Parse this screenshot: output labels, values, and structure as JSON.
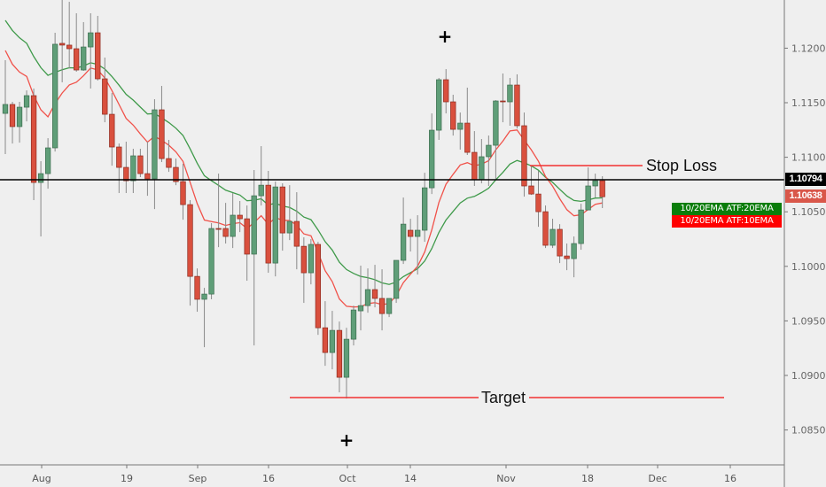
{
  "chart_data": {
    "type": "candlestick",
    "title": "",
    "price_ticks": [
      "1.12000",
      "1.11500",
      "1.11000",
      "1.10500",
      "1.10000",
      "1.09500",
      "1.09000",
      "1.08500"
    ],
    "date_ticks": [
      "Aug",
      "19",
      "Sep",
      "16",
      "Oct",
      "14",
      "Nov",
      "18",
      "Dec",
      "16"
    ],
    "ylim": [
      1.0815,
      1.1245
    ],
    "ohlc_order": [
      "open",
      "high",
      "low",
      "close"
    ],
    "candles": [
      [
        1.11402,
        1.1189,
        1.11029,
        1.11484
      ],
      [
        1.11484,
        1.11508,
        1.11126,
        1.11281
      ],
      [
        1.11281,
        1.11508,
        1.11134,
        1.11459
      ],
      [
        1.11459,
        1.11613,
        1.11329,
        1.11565
      ],
      [
        1.11565,
        1.1163,
        1.10607,
        1.10769
      ],
      [
        1.10769,
        1.10964,
        1.10274,
        1.1085
      ],
      [
        1.1085,
        1.11175,
        1.10712,
        1.11086
      ],
      [
        1.11086,
        1.12141,
        1.11053,
        1.12036
      ],
      [
        1.12044,
        1.12442,
        1.11687,
        1.12028
      ],
      [
        1.12028,
        1.12425,
        1.11816,
        1.11995
      ],
      [
        1.11995,
        1.1232,
        1.11784,
        1.118
      ],
      [
        1.118,
        1.12239,
        1.11792,
        1.12011
      ],
      [
        1.12011,
        1.1232,
        1.1163,
        1.12141
      ],
      [
        1.12141,
        1.12296,
        1.11703,
        1.11719
      ],
      [
        1.11719,
        1.11914,
        1.11321,
        1.11394
      ],
      [
        1.11394,
        1.11589,
        1.10923,
        1.11094
      ],
      [
        1.11094,
        1.11126,
        1.10672,
        1.10907
      ],
      [
        1.10907,
        1.11143,
        1.10672,
        1.10785
      ],
      [
        1.10785,
        1.11078,
        1.10672,
        1.11013
      ],
      [
        1.11013,
        1.11078,
        1.10818,
        1.1085
      ],
      [
        1.1085,
        1.11143,
        1.10647,
        1.10802
      ],
      [
        1.10802,
        1.11532,
        1.10525,
        1.11435
      ],
      [
        1.11435,
        1.11654,
        1.10956,
        1.10988
      ],
      [
        1.10988,
        1.11159,
        1.10866,
        1.10907
      ],
      [
        1.10907,
        1.10988,
        1.10744,
        1.10777
      ],
      [
        1.10777,
        1.1094,
        1.10428,
        1.10566
      ],
      [
        1.10566,
        1.10607,
        1.0964,
        1.09908
      ],
      [
        1.09908,
        1.09981,
        1.09584,
        1.09698
      ],
      [
        1.09698,
        1.09803,
        1.09259,
        1.09746
      ],
      [
        1.09746,
        1.10396,
        1.09698,
        1.10347
      ],
      [
        1.10347,
        1.1085,
        1.10176,
        1.10339
      ],
      [
        1.10347,
        1.10582,
        1.10209,
        1.10274
      ],
      [
        1.10274,
        1.10672,
        1.10168,
        1.10469
      ],
      [
        1.10469,
        1.10599,
        1.10314,
        1.10436
      ],
      [
        1.10436,
        1.10558,
        1.09868,
        1.10112
      ],
      [
        1.10112,
        1.10883,
        1.09275,
        1.10647
      ],
      [
        1.10647,
        1.11102,
        1.10558,
        1.10744
      ],
      [
        1.10744,
        1.10875,
        1.09941,
        1.1003
      ],
      [
        1.1003,
        1.10777,
        1.09908,
        1.10728
      ],
      [
        1.10728,
        1.10761,
        1.10144,
        1.10306
      ],
      [
        1.10306,
        1.10744,
        1.10241,
        1.10412
      ],
      [
        1.10412,
        1.1068,
        1.09973,
        1.10184
      ],
      [
        1.10184,
        1.10266,
        1.09665,
        1.09941
      ],
      [
        1.09941,
        1.1025,
        1.09835,
        1.10201
      ],
      [
        1.10201,
        1.10225,
        1.09372,
        1.09437
      ],
      [
        1.09437,
        1.09681,
        1.09088,
        1.0921
      ],
      [
        1.0921,
        1.09592,
        1.09056,
        1.09413
      ],
      [
        1.09413,
        1.09494,
        1.08845,
        1.08983
      ],
      [
        1.08983,
        1.09437,
        1.08788,
        1.09332
      ],
      [
        1.09332,
        1.0964,
        1.09275,
        1.096
      ],
      [
        1.09592,
        1.10006,
        1.09413,
        1.0964
      ],
      [
        1.0964,
        1.09981,
        1.09575,
        1.09787
      ],
      [
        1.09787,
        1.10014,
        1.09624,
        1.09706
      ],
      [
        1.09706,
        1.09973,
        1.09413,
        1.09567
      ],
      [
        1.09567,
        1.09706,
        1.09535,
        1.09706
      ],
      [
        1.09706,
        1.10055,
        1.09665,
        1.10055
      ],
      [
        1.10055,
        1.10631,
        1.10022,
        1.10387
      ],
      [
        1.10331,
        1.10436,
        1.10136,
        1.10274
      ],
      [
        1.10274,
        1.10469,
        1.09925,
        1.10331
      ],
      [
        1.10331,
        1.10858,
        1.10225,
        1.1072
      ],
      [
        1.1072,
        1.11402,
        1.10663,
        1.11248
      ],
      [
        1.11248,
        1.11727,
        1.11159,
        1.11711
      ],
      [
        1.11711,
        1.11808,
        1.11402,
        1.11508
      ],
      [
        1.11508,
        1.11573,
        1.11199,
        1.11256
      ],
      [
        1.11256,
        1.1141,
        1.1107,
        1.11313
      ],
      [
        1.11313,
        1.11638,
        1.11021,
        1.11045
      ],
      [
        1.11045,
        1.1124,
        1.10737,
        1.10793
      ],
      [
        1.10793,
        1.11167,
        1.10761,
        1.11005
      ],
      [
        1.11005,
        1.11199,
        1.10737,
        1.1111
      ],
      [
        1.1111,
        1.11524,
        1.10802,
        1.11516
      ],
      [
        1.11516,
        1.11768,
        1.11321,
        1.11508
      ],
      [
        1.11508,
        1.11727,
        1.11289,
        1.11662
      ],
      [
        1.11662,
        1.1176,
        1.11264,
        1.11289
      ],
      [
        1.11289,
        1.1141,
        1.10639,
        1.10737
      ],
      [
        1.10737,
        1.10923,
        1.10655,
        1.10663
      ],
      [
        1.10663,
        1.10875,
        1.10363,
        1.10501
      ],
      [
        1.10501,
        1.10558,
        1.10168,
        1.10193
      ],
      [
        1.10193,
        1.10436,
        1.10168,
        1.10339
      ],
      [
        1.10339,
        1.10387,
        1.1003,
        1.10095
      ],
      [
        1.10095,
        1.10209,
        1.09965,
        1.10071
      ],
      [
        1.10071,
        1.10274,
        1.099,
        1.10209
      ],
      [
        1.10209,
        1.10574,
        1.10152,
        1.10517
      ],
      [
        1.10517,
        1.10907,
        1.10517,
        1.10737
      ],
      [
        1.10737,
        1.1085,
        1.10631,
        1.10785
      ],
      [
        1.10785,
        1.10826,
        1.10534,
        1.10638
      ]
    ],
    "indicators": [
      {
        "name": "10/20EMA ATF:20EMA",
        "period": 20,
        "color": "#3f9a4a"
      },
      {
        "name": "10/20EMA ATF:10EMA",
        "period": 10,
        "color": "#f0524a"
      }
    ],
    "horizontal_line": {
      "price": 1.10794,
      "label": "1.10794",
      "color": "#000000"
    },
    "last_price": {
      "price": 1.10638,
      "label": "1.10638",
      "color": "#d9574a"
    },
    "annotations": {
      "stop_loss": {
        "text": "Stop Loss",
        "price": 1.10923,
        "color": "#f23030"
      },
      "target": {
        "text": "Target",
        "price": 1.08796,
        "color": "#f23030"
      }
    },
    "markers": [
      "+",
      "+"
    ],
    "colors": {
      "up": "#5f9e78",
      "up_border": "#3d6e50",
      "down": "#d9503e",
      "down_border": "#8e2a1e",
      "wick": "#8a8a8a",
      "background": "#efefef"
    },
    "grid": false,
    "legend": "right"
  }
}
